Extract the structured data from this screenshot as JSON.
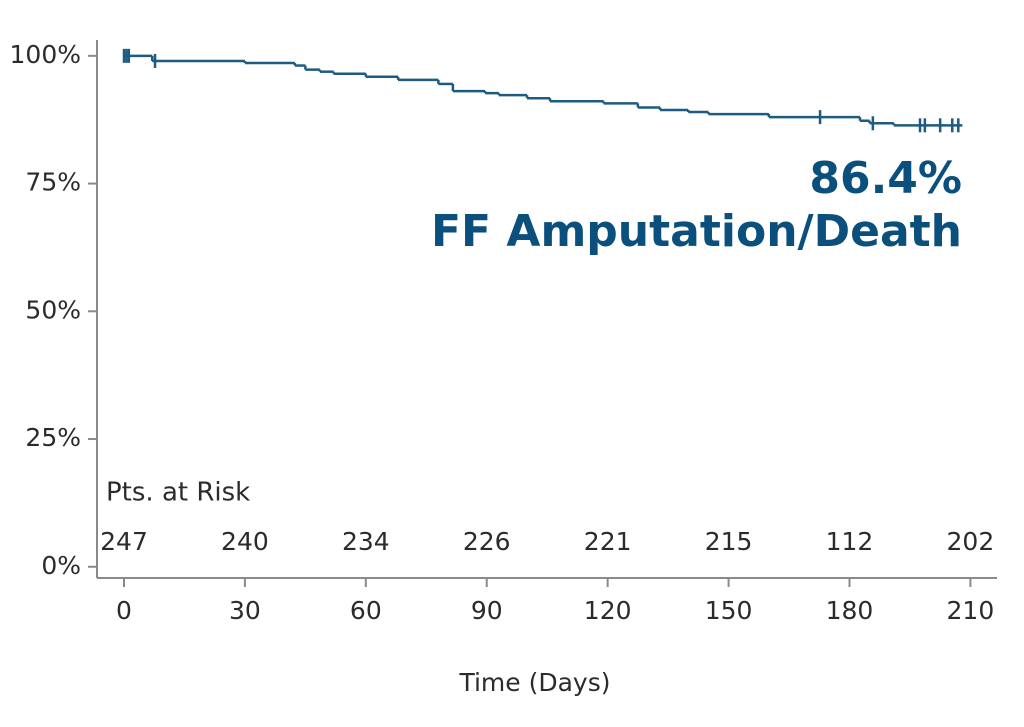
{
  "chart_data": {
    "type": "step",
    "x_label": "Time (Days)",
    "annotation": [
      "86.4%",
      "FF Amputation/Death"
    ],
    "color": "#1d5b80",
    "x": [
      0,
      7,
      30,
      42.4,
      45,
      48.6,
      52,
      60,
      68,
      78,
      81.6,
      89.6,
      93,
      100,
      105.7,
      119,
      127.5,
      133,
      140,
      145,
      160,
      182.6,
      185,
      191,
      208
    ],
    "values": [
      100,
      99.0,
      98.6,
      98.1,
      97.3,
      96.9,
      96.5,
      95.9,
      95.3,
      94.5,
      93.1,
      92.7,
      92.3,
      91.7,
      91.1,
      90.7,
      89.9,
      89.4,
      89.0,
      88.6,
      88.0,
      87.3,
      86.8,
      86.4,
      86.4
    ],
    "censor_x": [
      0,
      0.6,
      1.2,
      7.7,
      172.7,
      185.8,
      197.5,
      198.7,
      202.5,
      205.5,
      207
    ],
    "censor_values": [
      100,
      100,
      100,
      99.0,
      88.0,
      86.8,
      86.4,
      86.4,
      86.4,
      86.4,
      86.4
    ],
    "xlim": [
      -6.7,
      216.6
    ],
    "ylim": [
      -2.2,
      103.1
    ],
    "xticks": [
      0,
      30,
      60,
      90,
      120,
      150,
      180,
      210
    ],
    "yticks": [
      {
        "value": 0,
        "label": "0%"
      },
      {
        "value": 25,
        "label": "25%"
      },
      {
        "value": 50,
        "label": "50%"
      },
      {
        "value": 75,
        "label": "75%"
      },
      {
        "value": 100,
        "label": "100%"
      }
    ],
    "risk_table": {
      "label": "Pts. at Risk",
      "values": [
        247,
        240,
        234,
        226,
        221,
        215,
        112,
        202
      ]
    }
  }
}
